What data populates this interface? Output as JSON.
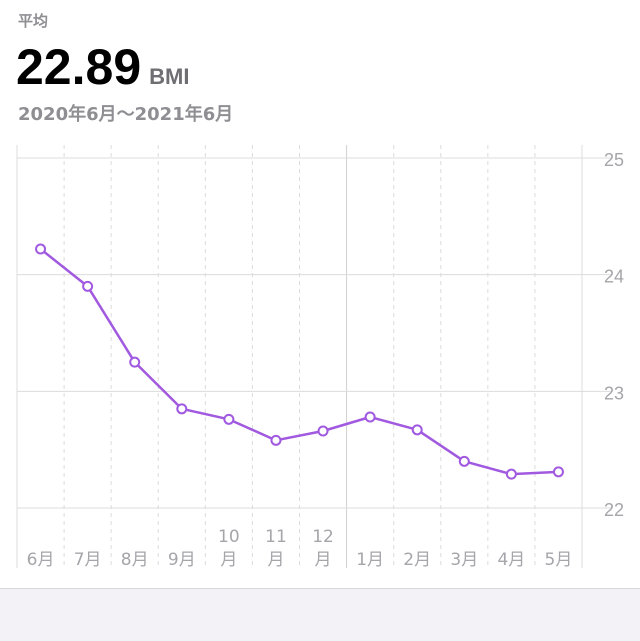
{
  "header": {
    "avg_label": "平均",
    "avg_value": "22.89",
    "avg_unit": "BMI",
    "date_range": "2020年6月〜2021年6月"
  },
  "colors": {
    "line": "#a159e0",
    "grid": "#dcdcdc",
    "axis_text": "#a5a5aa",
    "background": "#ffffff"
  },
  "chart_data": {
    "type": "line",
    "categories": [
      "6月",
      "7月",
      "8月",
      "9月",
      "10月",
      "11月",
      "12月",
      "1月",
      "2月",
      "3月",
      "4月",
      "5月"
    ],
    "tick_labels": [
      [
        "6月"
      ],
      [
        "7月"
      ],
      [
        "8月"
      ],
      [
        "9月"
      ],
      [
        "10",
        "月"
      ],
      [
        "11",
        "月"
      ],
      [
        "12",
        "月"
      ],
      [
        "1月"
      ],
      [
        "2月"
      ],
      [
        "3月"
      ],
      [
        "4月"
      ],
      [
        "5月"
      ]
    ],
    "series": [
      {
        "values": [
          24.22,
          23.9,
          23.25,
          22.85,
          22.76,
          22.58,
          22.66,
          22.78,
          22.67,
          22.4,
          22.29,
          22.31
        ]
      }
    ],
    "ylim": [
      22,
      25
    ],
    "yticks": [
      22,
      23,
      24,
      25
    ],
    "y_axis_position": "right",
    "grid": true,
    "title": "",
    "xlabel": "",
    "ylabel": ""
  }
}
